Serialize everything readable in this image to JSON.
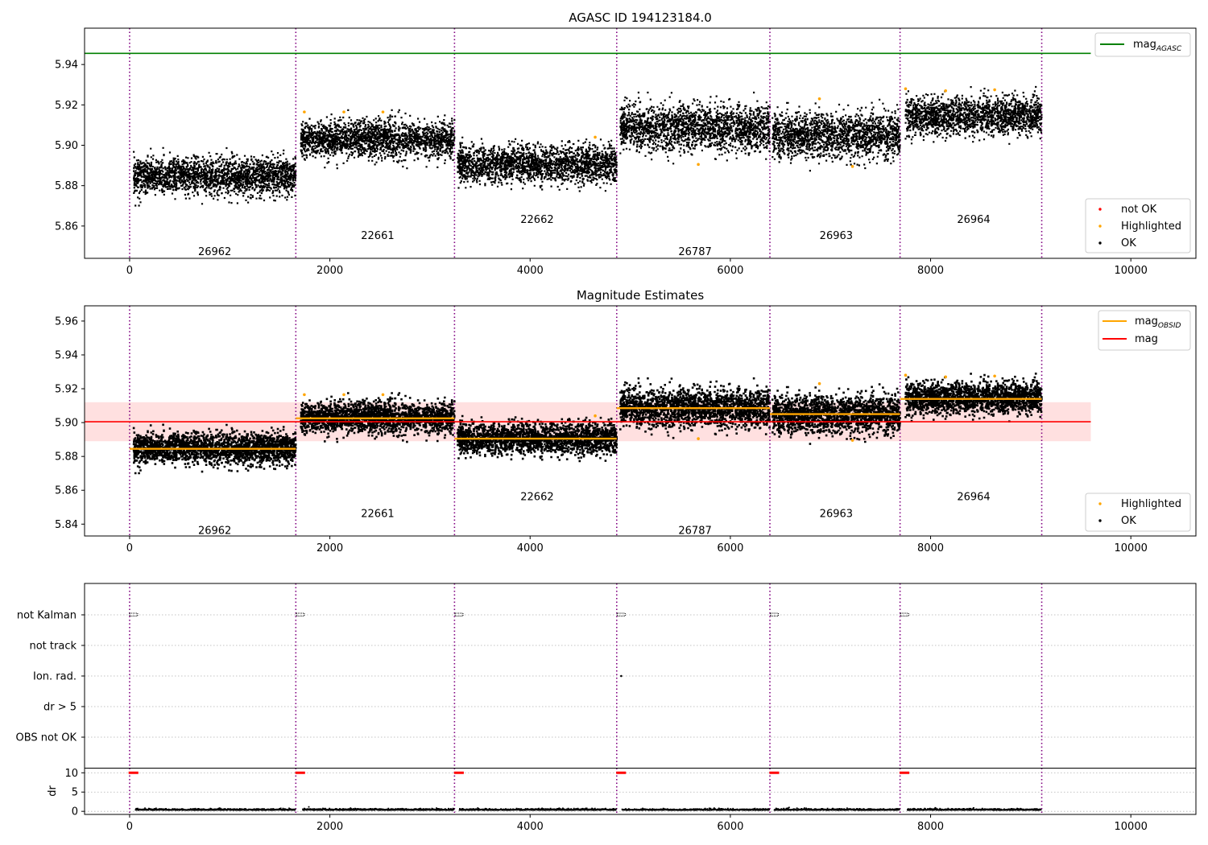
{
  "chart_data": [
    {
      "type": "scatter",
      "title": "AGASC ID 194123184.0",
      "xlim": [
        -450,
        10650
      ],
      "ylim": [
        5.844,
        5.958
      ],
      "xticks": [
        0,
        2000,
        4000,
        6000,
        8000,
        10000
      ],
      "yticks": [
        5.86,
        5.88,
        5.9,
        5.92,
        5.94
      ],
      "boundaries": [
        0,
        1660,
        3245,
        4865,
        6395,
        7695,
        9110
      ],
      "segments": [
        {
          "obsid": "26962",
          "x": [
            40,
            1660
          ],
          "mean": 5.8845,
          "sd": 0.0045,
          "label_y": 5.8475
        },
        {
          "obsid": "22661",
          "x": [
            1710,
            3245
          ],
          "mean": 5.903,
          "sd": 0.0045,
          "label_y": 5.8555
        },
        {
          "obsid": "22662",
          "x": [
            3275,
            4865
          ],
          "mean": 5.8905,
          "sd": 0.0045,
          "label_y": 5.8635
        },
        {
          "obsid": "26787",
          "x": [
            4900,
            6395
          ],
          "mean": 5.9085,
          "sd": 0.0055,
          "label_y": 5.8475
        },
        {
          "obsid": "26963",
          "x": [
            6420,
            7695
          ],
          "mean": 5.905,
          "sd": 0.0055,
          "label_y": 5.8555
        },
        {
          "obsid": "26964",
          "x": [
            7750,
            9110
          ],
          "mean": 5.9145,
          "sd": 0.0045,
          "label_y": 5.8635
        }
      ],
      "highlighted_points": [
        [
          1745,
          5.9165
        ],
        [
          2140,
          5.9165
        ],
        [
          2530,
          5.9165
        ],
        [
          4650,
          5.904
        ],
        [
          5680,
          5.8905
        ],
        [
          6890,
          5.923
        ],
        [
          7220,
          5.8895
        ],
        [
          7750,
          5.928
        ],
        [
          8150,
          5.927
        ],
        [
          8640,
          5.9275
        ]
      ],
      "agasc_mag": 5.9455,
      "agasc_line_x": [
        -450,
        9600
      ],
      "legend_top": {
        "placement": "top-right",
        "entries": [
          {
            "label": "mag",
            "sub": "AGASC",
            "color": "#008000"
          }
        ]
      },
      "legend_bottom": {
        "placement": "bottom-right",
        "entries": [
          {
            "label": "not OK",
            "color": "#ff0000"
          },
          {
            "label": "Highlighted",
            "color": "#ffa500"
          },
          {
            "label": "OK",
            "color": "#000000"
          }
        ]
      }
    },
    {
      "type": "scatter",
      "title": "Magnitude Estimates",
      "xlim": [
        -450,
        10650
      ],
      "ylim": [
        5.833,
        5.969
      ],
      "xticks": [
        0,
        2000,
        4000,
        6000,
        8000,
        10000
      ],
      "yticks": [
        5.84,
        5.86,
        5.88,
        5.9,
        5.92,
        5.94,
        5.96
      ],
      "mag": 5.9005,
      "mag_band": [
        5.889,
        5.912
      ],
      "mag_line_x": [
        -450,
        9600
      ],
      "obsid_means": [
        5.8845,
        5.9025,
        5.8905,
        5.9085,
        5.905,
        5.914
      ],
      "segment_label_y": [
        5.8365,
        5.8465,
        5.8565,
        5.8365,
        5.8465,
        5.8565
      ],
      "highlighted_points": [
        [
          1745,
          5.9165
        ],
        [
          2140,
          5.9165
        ],
        [
          2530,
          5.9165
        ],
        [
          4650,
          5.904
        ],
        [
          5680,
          5.8905
        ],
        [
          6890,
          5.923
        ],
        [
          7220,
          5.8895
        ],
        [
          7750,
          5.928
        ],
        [
          8150,
          5.927
        ],
        [
          8640,
          5.9275
        ]
      ],
      "legend_top": {
        "placement": "top-right",
        "entries": [
          {
            "label": "mag",
            "sub": "OBSID",
            "color": "#ffa500"
          },
          {
            "label": "mag",
            "color": "#ff0000"
          }
        ]
      },
      "legend_bottom": {
        "placement": "bottom-right",
        "entries": [
          {
            "label": "Highlighted",
            "color": "#ffa500"
          },
          {
            "label": "OK",
            "color": "#000000"
          }
        ]
      }
    },
    {
      "type": "scatter",
      "title": "",
      "xlim": [
        -450,
        10650
      ],
      "flag_rows": [
        "not Kalman",
        "not track",
        "Ion. rad.",
        "dr > 5",
        "OBS not OK"
      ],
      "not_kalman_x": [
        0,
        1665,
        3250,
        4870,
        6400,
        7700
      ],
      "not_kalman_width": 80,
      "ion_rad_points": [
        4910
      ]
    },
    {
      "type": "scatter",
      "title": "",
      "xlim": [
        -450,
        10650
      ],
      "ylim": [
        -0.8,
        11.1
      ],
      "xticks": [
        0,
        2000,
        4000,
        6000,
        8000,
        10000
      ],
      "yticks": [
        0,
        5,
        10
      ],
      "ylabel": "dr",
      "dr_high_x": [
        0,
        1665,
        3250,
        4870,
        6400,
        7700
      ],
      "dr_high_value": 10,
      "dr_low_value": 0.3
    }
  ]
}
